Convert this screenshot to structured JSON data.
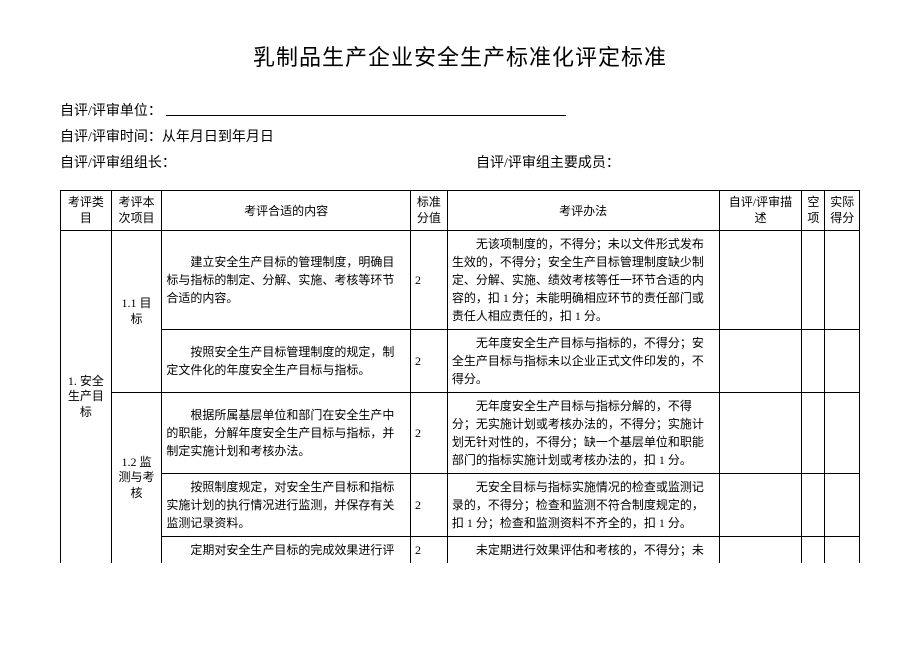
{
  "header": {
    "title": "乳制品生产企业安全生产标准化评定标准",
    "unit_label": "自评/评审单位：",
    "time_label": "自评/评审时间：",
    "time_value": "从年月日到年月日",
    "leader_label": "自评/评审组组长：",
    "members_label": "自评/评审组主要成员："
  },
  "columns": {
    "c0": "考评类目",
    "c1": "考评本次项目",
    "c2": "考评合适的内容",
    "c3": "标准分值",
    "c4": "考评办法",
    "c5": "自评/评审描述",
    "c6": "空项",
    "c7": "实际得分"
  },
  "cat1": {
    "name": "1. 安全生产目标",
    "s1": {
      "name": "1.1 目标",
      "r1": {
        "content": "建立安全生产目标的管理制度，明确目标与指标的制定、分解、实施、考核等环节合适的内容。",
        "score": "2",
        "method": "无该项制度的，不得分；未以文件形式发布生效的，不得分；安全生产目标管理制度缺少制定、分解、实施、绩效考核等任一环节合适的内容的，扣 1 分；未能明确相应环节的责任部门或责任人相应责任的，扣 1 分。"
      },
      "r2": {
        "content": "按照安全生产目标管理制度的规定，制定文件化的年度安全生产目标与指标。",
        "score": "2",
        "method": "无年度安全生产目标与指标的，不得分；安全生产目标与指标未以企业正式文件印发的，不得分。"
      }
    },
    "s2": {
      "name": "1.2 监测与考核",
      "r1": {
        "content": "根据所属基层单位和部门在安全生产中的职能，分解年度安全生产目标与指标，并制定实施计划和考核办法。",
        "score": "2",
        "method": "无年度安全生产目标与指标分解的，不得分；无实施计划或考核办法的，不得分；实施计划无针对性的，不得分；缺一个基层单位和职能部门的指标实施计划或考核办法的，扣 1 分。"
      },
      "r2": {
        "content": "按照制度规定，对安全生产目标和指标实施计划的执行情况进行监测，并保存有关监测记录资料。",
        "score": "2",
        "method": "无安全目标与指标实施情况的检查或监测记录的，不得分；检查和监测不符合制度规定的，扣 1 分；检查和监测资料不齐全的，扣 1 分。"
      },
      "r3": {
        "content": "定期对安全生产目标的完成效果进行评",
        "score": "2",
        "method": "未定期进行效果评估和考核的，不得分；未"
      }
    }
  }
}
